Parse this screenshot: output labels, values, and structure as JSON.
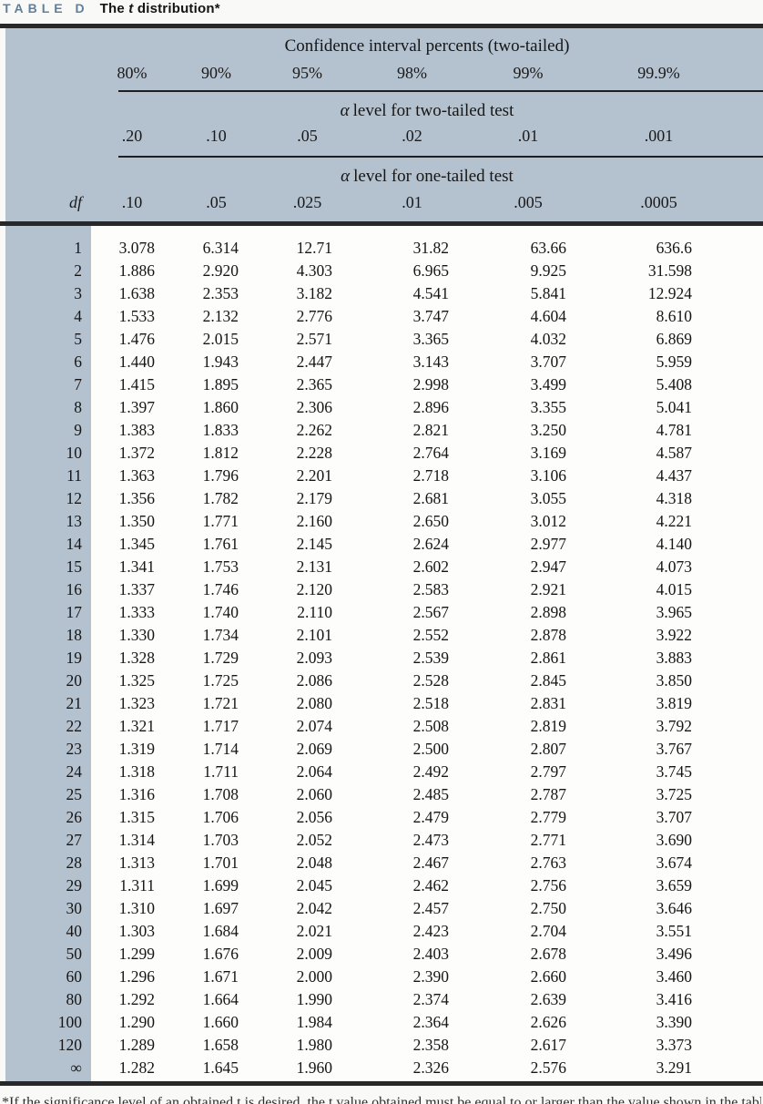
{
  "title": {
    "label": "TABLE D",
    "subtitle_prefix": "The ",
    "subtitle_italic": "t",
    "subtitle_suffix": " distribution*"
  },
  "header": {
    "ci_title": "Confidence interval percents (two-tailed)",
    "ci_percents": [
      "80%",
      "90%",
      "95%",
      "98%",
      "99%",
      "99.9%"
    ],
    "alpha_symbol": "α",
    "two_tailed_title_text": "level for two-tailed test",
    "two_tailed_alphas": [
      ".20",
      ".10",
      ".05",
      ".02",
      ".01",
      ".001"
    ],
    "one_tailed_title_text": "level for one-tailed test",
    "one_tailed_alphas": [
      ".10",
      ".05",
      ".025",
      ".01",
      ".005",
      ".0005"
    ],
    "df_label": "df"
  },
  "colors": {
    "header_background": "#b4c1cf",
    "title_accent": "#607f9e",
    "rule": "#282828"
  },
  "table": {
    "rows": [
      [
        "1",
        "3.078",
        "6.314",
        "12.71",
        "31.82",
        "63.66",
        "636.6"
      ],
      [
        "2",
        "1.886",
        "2.920",
        "4.303",
        "6.965",
        "9.925",
        "31.598"
      ],
      [
        "3",
        "1.638",
        "2.353",
        "3.182",
        "4.541",
        "5.841",
        "12.924"
      ],
      [
        "4",
        "1.533",
        "2.132",
        "2.776",
        "3.747",
        "4.604",
        "8.610"
      ],
      [
        "5",
        "1.476",
        "2.015",
        "2.571",
        "3.365",
        "4.032",
        "6.869"
      ],
      [
        "6",
        "1.440",
        "1.943",
        "2.447",
        "3.143",
        "3.707",
        "5.959"
      ],
      [
        "7",
        "1.415",
        "1.895",
        "2.365",
        "2.998",
        "3.499",
        "5.408"
      ],
      [
        "8",
        "1.397",
        "1.860",
        "2.306",
        "2.896",
        "3.355",
        "5.041"
      ],
      [
        "9",
        "1.383",
        "1.833",
        "2.262",
        "2.821",
        "3.250",
        "4.781"
      ],
      [
        "10",
        "1.372",
        "1.812",
        "2.228",
        "2.764",
        "3.169",
        "4.587"
      ],
      [
        "11",
        "1.363",
        "1.796",
        "2.201",
        "2.718",
        "3.106",
        "4.437"
      ],
      [
        "12",
        "1.356",
        "1.782",
        "2.179",
        "2.681",
        "3.055",
        "4.318"
      ],
      [
        "13",
        "1.350",
        "1.771",
        "2.160",
        "2.650",
        "3.012",
        "4.221"
      ],
      [
        "14",
        "1.345",
        "1.761",
        "2.145",
        "2.624",
        "2.977",
        "4.140"
      ],
      [
        "15",
        "1.341",
        "1.753",
        "2.131",
        "2.602",
        "2.947",
        "4.073"
      ],
      [
        "16",
        "1.337",
        "1.746",
        "2.120",
        "2.583",
        "2.921",
        "4.015"
      ],
      [
        "17",
        "1.333",
        "1.740",
        "2.110",
        "2.567",
        "2.898",
        "3.965"
      ],
      [
        "18",
        "1.330",
        "1.734",
        "2.101",
        "2.552",
        "2.878",
        "3.922"
      ],
      [
        "19",
        "1.328",
        "1.729",
        "2.093",
        "2.539",
        "2.861",
        "3.883"
      ],
      [
        "20",
        "1.325",
        "1.725",
        "2.086",
        "2.528",
        "2.845",
        "3.850"
      ],
      [
        "21",
        "1.323",
        "1.721",
        "2.080",
        "2.518",
        "2.831",
        "3.819"
      ],
      [
        "22",
        "1.321",
        "1.717",
        "2.074",
        "2.508",
        "2.819",
        "3.792"
      ],
      [
        "23",
        "1.319",
        "1.714",
        "2.069",
        "2.500",
        "2.807",
        "3.767"
      ],
      [
        "24",
        "1.318",
        "1.711",
        "2.064",
        "2.492",
        "2.797",
        "3.745"
      ],
      [
        "25",
        "1.316",
        "1.708",
        "2.060",
        "2.485",
        "2.787",
        "3.725"
      ],
      [
        "26",
        "1.315",
        "1.706",
        "2.056",
        "2.479",
        "2.779",
        "3.707"
      ],
      [
        "27",
        "1.314",
        "1.703",
        "2.052",
        "2.473",
        "2.771",
        "3.690"
      ],
      [
        "28",
        "1.313",
        "1.701",
        "2.048",
        "2.467",
        "2.763",
        "3.674"
      ],
      [
        "29",
        "1.311",
        "1.699",
        "2.045",
        "2.462",
        "2.756",
        "3.659"
      ],
      [
        "30",
        "1.310",
        "1.697",
        "2.042",
        "2.457",
        "2.750",
        "3.646"
      ],
      [
        "40",
        "1.303",
        "1.684",
        "2.021",
        "2.423",
        "2.704",
        "3.551"
      ],
      [
        "50",
        "1.299",
        "1.676",
        "2.009",
        "2.403",
        "2.678",
        "3.496"
      ],
      [
        "60",
        "1.296",
        "1.671",
        "2.000",
        "2.390",
        "2.660",
        "3.460"
      ],
      [
        "80",
        "1.292",
        "1.664",
        "1.990",
        "2.374",
        "2.639",
        "3.416"
      ],
      [
        "100",
        "1.290",
        "1.660",
        "1.984",
        "2.364",
        "2.626",
        "3.390"
      ],
      [
        "120",
        "1.289",
        "1.658",
        "1.980",
        "2.358",
        "2.617",
        "3.373"
      ],
      [
        "∞",
        "1.282",
        "1.645",
        "1.960",
        "2.326",
        "2.576",
        "3.291"
      ]
    ]
  },
  "footnote": {
    "text": "*If the significance level of an obtained t is desired, the t value obtained must be equal to or larger than the value shown in the table."
  }
}
